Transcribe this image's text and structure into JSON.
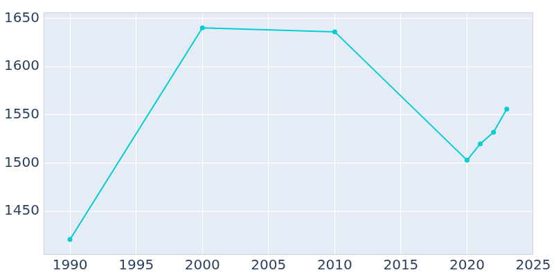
{
  "chart_data": {
    "type": "line",
    "x": [
      1990,
      2000,
      2010,
      2020,
      2021,
      2022,
      2023
    ],
    "values": [
      1421,
      1640,
      1636,
      1503,
      1520,
      1532,
      1556
    ],
    "color": "#00ced1",
    "marker": "circle",
    "xlim": [
      1988,
      2025
    ],
    "xticks": [
      1990,
      1995,
      2000,
      2005,
      2010,
      2015,
      2020,
      2025
    ],
    "ylim": [
      1405,
      1656
    ],
    "yticks": [
      1450,
      1500,
      1550,
      1600,
      1650
    ],
    "grid": true
  }
}
